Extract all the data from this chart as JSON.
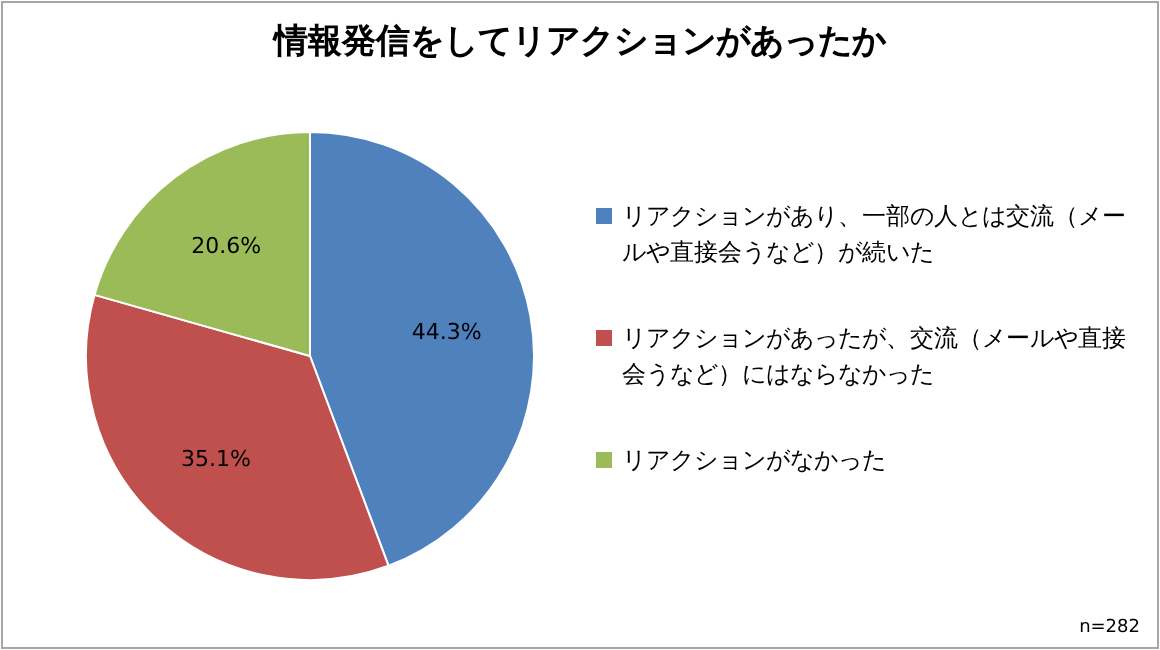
{
  "chart_data": {
    "type": "pie",
    "title": "情報発信をしてリアクションがあったか",
    "categories": [
      "リアクションがあり、一部の人とは交流（メールや直接会うなど）が続いた",
      "リアクションがあったが、交流（メールや直接会うなど）にはならなかった",
      "リアクションがなかった"
    ],
    "values": [
      44.3,
      35.1,
      20.6
    ],
    "colors": [
      "#4f81bd",
      "#c0504d",
      "#9bbb59"
    ],
    "value_labels": [
      "44.3%",
      "35.1%",
      "20.6%"
    ],
    "legend": "right",
    "annotations": [
      "n=282"
    ]
  }
}
